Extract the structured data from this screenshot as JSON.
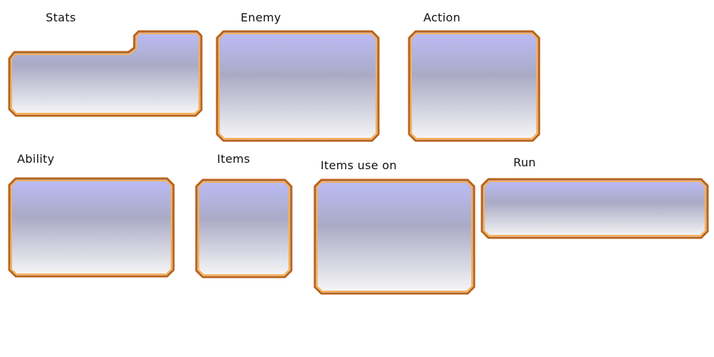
{
  "panels": {
    "stats": {
      "label": "Stats"
    },
    "enemy": {
      "label": "Enemy"
    },
    "action": {
      "label": "Action"
    },
    "ability": {
      "label": "Ability"
    },
    "items": {
      "label": "Items"
    },
    "items_use_on": {
      "label": "Items use on"
    },
    "run": {
      "label": "Run"
    }
  },
  "colors": {
    "frame_border_dark": "#b8621a",
    "frame_border_light": "#f5b25a",
    "fill_top": "#bcbcf6",
    "fill_mid": "#a9a9c4",
    "fill_bottom": "#f7f7f7"
  }
}
